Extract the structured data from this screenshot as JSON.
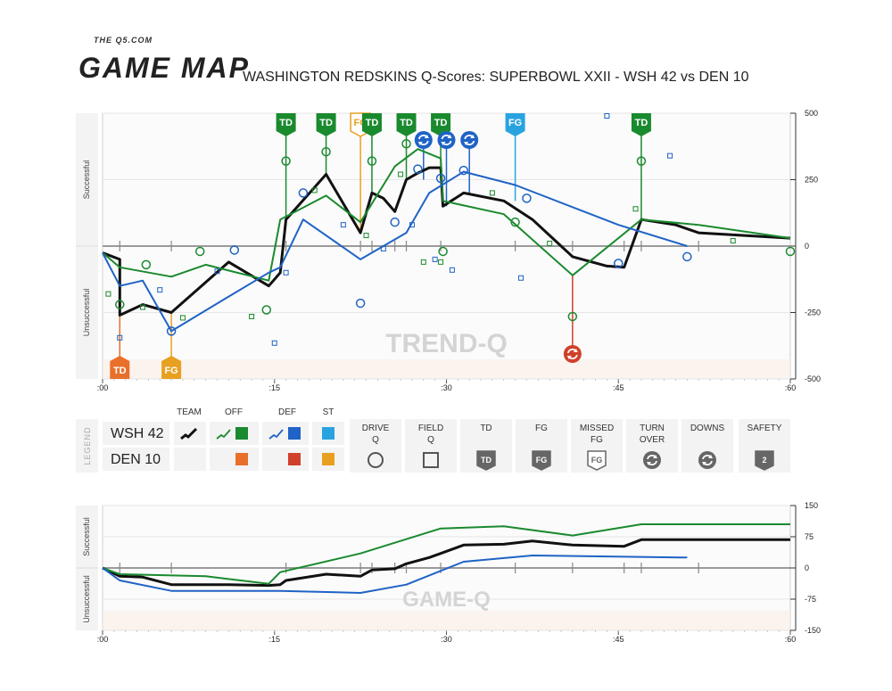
{
  "header": {
    "brand_small": "THE Q5.COM",
    "brand_big": "GAME MAP",
    "title": "WASHINGTON REDSKINS Q-Scores: SUPERBOWL XXII - WSH 42 vs DEN 10"
  },
  "colors": {
    "team": "#111111",
    "offense": "#1a8a2e",
    "defense": "#1f63c6",
    "special_teams": "#29a3e0",
    "opp_offense": "#e8702a",
    "opp_defense": "#d0402a",
    "opp_special_teams": "#e8a020"
  },
  "legend": {
    "label": "LEGEND",
    "teams": [
      {
        "name": "WSH",
        "score": "42"
      },
      {
        "name": "DEN",
        "score": "10"
      }
    ],
    "columns": [
      "TEAM",
      "OFF",
      "DEF",
      "ST"
    ],
    "symbols": [
      {
        "label": "DRIVE Q",
        "icon": "circle-icon"
      },
      {
        "label": "FIELD Q",
        "icon": "square-icon"
      },
      {
        "label": "TD",
        "icon": "td-badge-icon",
        "badge": "TD"
      },
      {
        "label": "FG",
        "icon": "fg-badge-icon",
        "badge": "FG"
      },
      {
        "label": "MISSED FG",
        "icon": "missed-fg-badge-icon",
        "badge": "FG"
      },
      {
        "label": "TURN OVER",
        "icon": "turnover-icon"
      },
      {
        "label": "DOWNS",
        "icon": "downs-icon"
      },
      {
        "label": "SAFETY",
        "icon": "safety-badge-icon",
        "badge": "2"
      }
    ]
  },
  "chart_data": [
    {
      "type": "line",
      "title": "TREND-Q",
      "side_labels": {
        "top": "Successful",
        "bottom": "Unsuccessful"
      },
      "xlim": [
        0,
        60
      ],
      "ylim": [
        -500,
        500
      ],
      "x_ticks": [
        ":00",
        ":15",
        ":30",
        ":45",
        ":60"
      ],
      "y_ticks": [
        "500",
        "250",
        "0",
        "-250",
        "-500"
      ],
      "series": [
        {
          "name": "TEAM",
          "color": "#111111",
          "width": 3,
          "points": [
            [
              0,
              -25
            ],
            [
              1.5,
              -50
            ],
            [
              1.5,
              -260
            ],
            [
              3.5,
              -220
            ],
            [
              6,
              -250
            ],
            [
              11,
              -60
            ],
            [
              14.5,
              -150
            ],
            [
              15.5,
              -100
            ],
            [
              16,
              100
            ],
            [
              19.5,
              270
            ],
            [
              22.5,
              50
            ],
            [
              23.5,
              200
            ],
            [
              24.5,
              180
            ],
            [
              25.5,
              130
            ],
            [
              26.5,
              250
            ],
            [
              27.5,
              275
            ],
            [
              28.5,
              295
            ],
            [
              29.5,
              295
            ],
            [
              29.7,
              150
            ],
            [
              31.5,
              200
            ],
            [
              35,
              170
            ],
            [
              37.5,
              100
            ],
            [
              41,
              -40
            ],
            [
              44,
              -75
            ],
            [
              45.5,
              -80
            ],
            [
              47,
              100
            ],
            [
              50,
              80
            ],
            [
              52,
              50
            ],
            [
              60,
              30
            ]
          ]
        },
        {
          "name": "OFF",
          "color": "#1a8a2e",
          "width": 2,
          "points": [
            [
              0,
              -25
            ],
            [
              1.5,
              -80
            ],
            [
              6,
              -115
            ],
            [
              9,
              -70
            ],
            [
              14.5,
              -130
            ],
            [
              15.5,
              100
            ],
            [
              19.5,
              190
            ],
            [
              22.5,
              90
            ],
            [
              25.5,
              300
            ],
            [
              27.5,
              365
            ],
            [
              29.5,
              330
            ],
            [
              29.7,
              170
            ],
            [
              35,
              120
            ],
            [
              41,
              -110
            ],
            [
              47,
              100
            ],
            [
              52,
              80
            ],
            [
              60,
              30
            ]
          ]
        },
        {
          "name": "DEF",
          "color": "#1f63c6",
          "width": 2,
          "points": [
            [
              0,
              -25
            ],
            [
              1.5,
              -150
            ],
            [
              3.5,
              -130
            ],
            [
              6,
              -320
            ],
            [
              11,
              -190
            ],
            [
              14.5,
              -100
            ],
            [
              15.5,
              -80
            ],
            [
              17.5,
              100
            ],
            [
              22.5,
              -50
            ],
            [
              26.5,
              50
            ],
            [
              28.5,
              200
            ],
            [
              31.5,
              280
            ],
            [
              36,
              230
            ],
            [
              45,
              80
            ],
            [
              51,
              0
            ]
          ]
        }
      ],
      "markers": {
        "drive_q": [
          {
            "x": 1.5,
            "y": -450,
            "c": "#1f63c6"
          },
          {
            "x": 1.5,
            "y": -220,
            "c": "#1a8a2e"
          },
          {
            "x": 3.8,
            "y": -70,
            "c": "#1a8a2e"
          },
          {
            "x": 6,
            "y": -320,
            "c": "#1f63c6"
          },
          {
            "x": 8.5,
            "y": -20,
            "c": "#1a8a2e"
          },
          {
            "x": 11.5,
            "y": -15,
            "c": "#1f63c6"
          },
          {
            "x": 14.3,
            "y": -240,
            "c": "#1a8a2e"
          },
          {
            "x": 16,
            "y": 320,
            "c": "#1a8a2e"
          },
          {
            "x": 17.5,
            "y": 200,
            "c": "#1f63c6"
          },
          {
            "x": 19.5,
            "y": 355,
            "c": "#1a8a2e"
          },
          {
            "x": 22.5,
            "y": -215,
            "c": "#1f63c6"
          },
          {
            "x": 23.5,
            "y": 320,
            "c": "#1a8a2e"
          },
          {
            "x": 25.5,
            "y": 90,
            "c": "#1f63c6"
          },
          {
            "x": 26.5,
            "y": 385,
            "c": "#1a8a2e"
          },
          {
            "x": 27.5,
            "y": 290,
            "c": "#1f63c6"
          },
          {
            "x": 29.5,
            "y": 255,
            "c": "#1f63c6"
          },
          {
            "x": 29.7,
            "y": -20,
            "c": "#1a8a2e"
          },
          {
            "x": 31.5,
            "y": 285,
            "c": "#1f63c6"
          },
          {
            "x": 36,
            "y": 90,
            "c": "#1a8a2e"
          },
          {
            "x": 37,
            "y": 180,
            "c": "#1f63c6"
          },
          {
            "x": 41,
            "y": -265,
            "c": "#1a8a2e"
          },
          {
            "x": 45,
            "y": -65,
            "c": "#1f63c6"
          },
          {
            "x": 47,
            "y": 320,
            "c": "#1a8a2e"
          },
          {
            "x": 51,
            "y": -40,
            "c": "#1f63c6"
          },
          {
            "x": 60,
            "y": -20,
            "c": "#1a8a2e"
          }
        ],
        "field_q": [
          {
            "x": 0.5,
            "y": -180,
            "c": "#1a8a2e"
          },
          {
            "x": 1.5,
            "y": -345,
            "c": "#1f63c6"
          },
          {
            "x": 3.5,
            "y": -230,
            "c": "#1a8a2e"
          },
          {
            "x": 5,
            "y": -165,
            "c": "#1f63c6"
          },
          {
            "x": 7,
            "y": -270,
            "c": "#1a8a2e"
          },
          {
            "x": 10,
            "y": -95,
            "c": "#1f63c6"
          },
          {
            "x": 13,
            "y": -265,
            "c": "#1a8a2e"
          },
          {
            "x": 15,
            "y": -365,
            "c": "#1f63c6"
          },
          {
            "x": 16,
            "y": -100,
            "c": "#1f63c6"
          },
          {
            "x": 18.5,
            "y": 210,
            "c": "#1a8a2e"
          },
          {
            "x": 21,
            "y": 80,
            "c": "#1f63c6"
          },
          {
            "x": 23,
            "y": 40,
            "c": "#1a8a2e"
          },
          {
            "x": 24.5,
            "y": -10,
            "c": "#1f63c6"
          },
          {
            "x": 26,
            "y": 270,
            "c": "#1a8a2e"
          },
          {
            "x": 27,
            "y": 80,
            "c": "#1f63c6"
          },
          {
            "x": 28,
            "y": -60,
            "c": "#1a8a2e"
          },
          {
            "x": 29,
            "y": -50,
            "c": "#1f63c6"
          },
          {
            "x": 29.5,
            "y": -60,
            "c": "#1a8a2e"
          },
          {
            "x": 30.5,
            "y": -90,
            "c": "#1f63c6"
          },
          {
            "x": 34,
            "y": 200,
            "c": "#1a8a2e"
          },
          {
            "x": 36.5,
            "y": -120,
            "c": "#1f63c6"
          },
          {
            "x": 39,
            "y": 10,
            "c": "#1a8a2e"
          },
          {
            "x": 44,
            "y": 490,
            "c": "#1f63c6"
          },
          {
            "x": 46.5,
            "y": 140,
            "c": "#1a8a2e"
          },
          {
            "x": 49.5,
            "y": 340,
            "c": "#1f63c6"
          },
          {
            "x": 55,
            "y": 20,
            "c": "#1a8a2e"
          }
        ],
        "events_top": [
          {
            "x": 16,
            "label": "TD",
            "kind": "td",
            "c": "#1a8a2e",
            "to": 100
          },
          {
            "x": 19.5,
            "label": "TD",
            "kind": "td",
            "c": "#1a8a2e",
            "to": 270
          },
          {
            "x": 22.5,
            "label": "FG",
            "kind": "fg",
            "c": "#e8a020",
            "to": 50
          },
          {
            "x": 23.5,
            "label": "TD",
            "kind": "td",
            "c": "#1a8a2e",
            "to": 200
          },
          {
            "x": 26.5,
            "label": "TD",
            "kind": "td",
            "c": "#1a8a2e",
            "to": 250
          },
          {
            "x": 29.5,
            "label": "TD",
            "kind": "td",
            "c": "#1a8a2e",
            "to": 295
          },
          {
            "x": 36,
            "label": "FG",
            "kind": "fg",
            "c": "#29a3e0",
            "to": 170
          },
          {
            "x": 47,
            "label": "TD",
            "kind": "td",
            "c": "#1a8a2e",
            "to": 100
          }
        ],
        "turnovers_top": [
          {
            "x": 28,
            "c": "#1f63c6",
            "to": 250
          },
          {
            "x": 30,
            "c": "#1f63c6",
            "to": 150
          },
          {
            "x": 32,
            "c": "#1f63c6",
            "to": 200
          }
        ],
        "events_bottom": [
          {
            "x": 1.5,
            "label": "TD",
            "kind": "td",
            "c": "#e8702a",
            "to": -50
          },
          {
            "x": 6,
            "label": "FG",
            "kind": "fg",
            "c": "#e8a020",
            "to": -250
          }
        ],
        "turnovers_bottom": [
          {
            "x": 41,
            "c": "#d0402a",
            "to": -110
          }
        ],
        "ticks": [
          1.5,
          6,
          16,
          22.5,
          23.5,
          25.5,
          26.5,
          29.5,
          36,
          41,
          45.5,
          47,
          52
        ]
      }
    },
    {
      "type": "line",
      "title": "GAME-Q",
      "side_labels": {
        "top": "Successful",
        "bottom": "Unsuccessful"
      },
      "xlim": [
        0,
        60
      ],
      "ylim": [
        -150,
        150
      ],
      "x_ticks": [
        ":00",
        ":15",
        ":30",
        ":45",
        ":60"
      ],
      "y_ticks": [
        "150",
        "75",
        "0",
        "-75",
        "-150"
      ],
      "series": [
        {
          "name": "TEAM",
          "color": "#111111",
          "width": 3,
          "points": [
            [
              0,
              0
            ],
            [
              1.5,
              -20
            ],
            [
              3.5,
              -22
            ],
            [
              6,
              -40
            ],
            [
              11,
              -40
            ],
            [
              14.5,
              -42
            ],
            [
              15.5,
              -40
            ],
            [
              16,
              -30
            ],
            [
              19.5,
              -15
            ],
            [
              22.5,
              -20
            ],
            [
              23.5,
              -5
            ],
            [
              25.5,
              -2
            ],
            [
              26.5,
              10
            ],
            [
              28.5,
              25
            ],
            [
              29.5,
              35
            ],
            [
              31.5,
              55
            ],
            [
              35,
              57
            ],
            [
              37.5,
              65
            ],
            [
              41,
              55
            ],
            [
              45.5,
              52
            ],
            [
              47,
              68
            ],
            [
              60,
              68
            ]
          ]
        },
        {
          "name": "OFF",
          "color": "#1a8a2e",
          "width": 2,
          "points": [
            [
              0,
              0
            ],
            [
              1.5,
              -15
            ],
            [
              9,
              -20
            ],
            [
              14.5,
              -38
            ],
            [
              15.5,
              -10
            ],
            [
              22.5,
              35
            ],
            [
              29.5,
              95
            ],
            [
              35,
              100
            ],
            [
              41,
              78
            ],
            [
              47,
              105
            ],
            [
              60,
              105
            ]
          ]
        },
        {
          "name": "DEF",
          "color": "#1f63c6",
          "width": 2,
          "points": [
            [
              0,
              0
            ],
            [
              1.5,
              -30
            ],
            [
              6,
              -55
            ],
            [
              15.5,
              -55
            ],
            [
              22.5,
              -60
            ],
            [
              26.5,
              -40
            ],
            [
              31.5,
              15
            ],
            [
              37.5,
              30
            ],
            [
              51,
              25
            ]
          ]
        }
      ],
      "ticks": [
        1.5,
        6,
        16,
        22.5,
        23.5,
        25.5,
        26.5,
        29.5,
        36,
        41,
        45.5,
        47,
        52
      ]
    }
  ]
}
